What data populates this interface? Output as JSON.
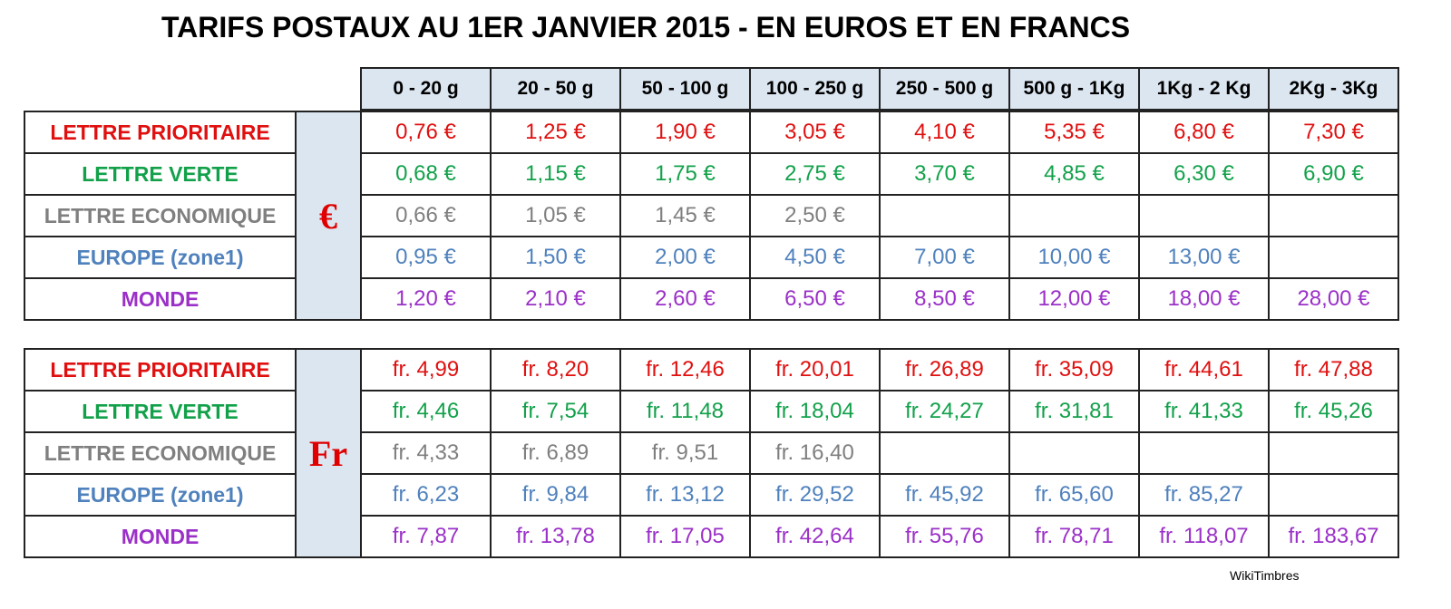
{
  "title": "TARIFS POSTAUX AU 1ER JANVIER 2015 - EN EUROS ET EN FRANCS",
  "columns": [
    "0 - 20 g",
    "20 - 50 g",
    "50  - 100 g",
    "100 - 250 g",
    "250  - 500 g",
    "500 g  - 1Kg",
    "1Kg  - 2 Kg",
    "2Kg  - 3Kg"
  ],
  "euro_table": {
    "currency_symbol": "€",
    "rows": [
      {
        "label": "LETTRE PRIORITAIRE",
        "values": [
          "0,76 €",
          "1,25 €",
          "1,90 €",
          "3,05 €",
          "4,10 €",
          "5,35 €",
          "6,80 €",
          "7,30 €"
        ]
      },
      {
        "label": "LETTRE VERTE",
        "values": [
          "0,68 €",
          "1,15 €",
          "1,75 €",
          "2,75 €",
          "3,70 €",
          "4,85 €",
          "6,30 €",
          "6,90 €"
        ]
      },
      {
        "label": "LETTRE ECONOMIQUE",
        "values": [
          "0,66 €",
          "1,05 €",
          "1,45 €",
          "2,50 €",
          "",
          "",
          "",
          ""
        ]
      },
      {
        "label": "EUROPE (zone1)",
        "values": [
          "0,95 €",
          "1,50 €",
          "2,00 €",
          "4,50 €",
          "7,00 €",
          "10,00 €",
          "13,00 €",
          ""
        ]
      },
      {
        "label": "MONDE",
        "values": [
          "1,20 €",
          "2,10 €",
          "2,60 €",
          "6,50 €",
          "8,50 €",
          "12,00 €",
          "18,00 €",
          "28,00 €"
        ]
      }
    ]
  },
  "franc_table": {
    "currency_symbol": "Fr",
    "rows": [
      {
        "label": "LETTRE PRIORITAIRE",
        "values": [
          "fr. 4,99",
          "fr. 8,20",
          "fr. 12,46",
          "fr. 20,01",
          "fr. 26,89",
          "fr. 35,09",
          "fr. 44,61",
          "fr. 47,88"
        ]
      },
      {
        "label": "LETTRE VERTE",
        "values": [
          "fr. 4,46",
          "fr. 7,54",
          "fr. 11,48",
          "fr. 18,04",
          "fr. 24,27",
          "fr. 31,81",
          "fr. 41,33",
          "fr. 45,26"
        ]
      },
      {
        "label": "LETTRE ECONOMIQUE",
        "values": [
          "fr. 4,33",
          "fr. 6,89",
          "fr. 9,51",
          "fr. 16,40",
          "",
          "",
          "",
          ""
        ]
      },
      {
        "label": "EUROPE (zone1)",
        "values": [
          "fr. 6,23",
          "fr. 9,84",
          "fr. 13,12",
          "fr. 29,52",
          "fr. 45,92",
          "fr. 65,60",
          "fr. 85,27",
          ""
        ]
      },
      {
        "label": "MONDE",
        "values": [
          "fr. 7,87",
          "fr. 13,78",
          "fr. 17,05",
          "fr. 42,64",
          "fr. 55,76",
          "fr. 78,71",
          "fr. 118,07",
          "fr. 183,67"
        ]
      }
    ]
  },
  "row_colors": {
    "LETTRE PRIORITAIRE": "#e01010",
    "LETTRE VERTE": "#12a14a",
    "LETTRE ECONOMIQUE": "#7f7f7f",
    "EUROPE (zone1)": "#4f81bd",
    "MONDE": "#9b30c8"
  },
  "header_fill": "#dce6f1",
  "credit": "WikiTimbres"
}
